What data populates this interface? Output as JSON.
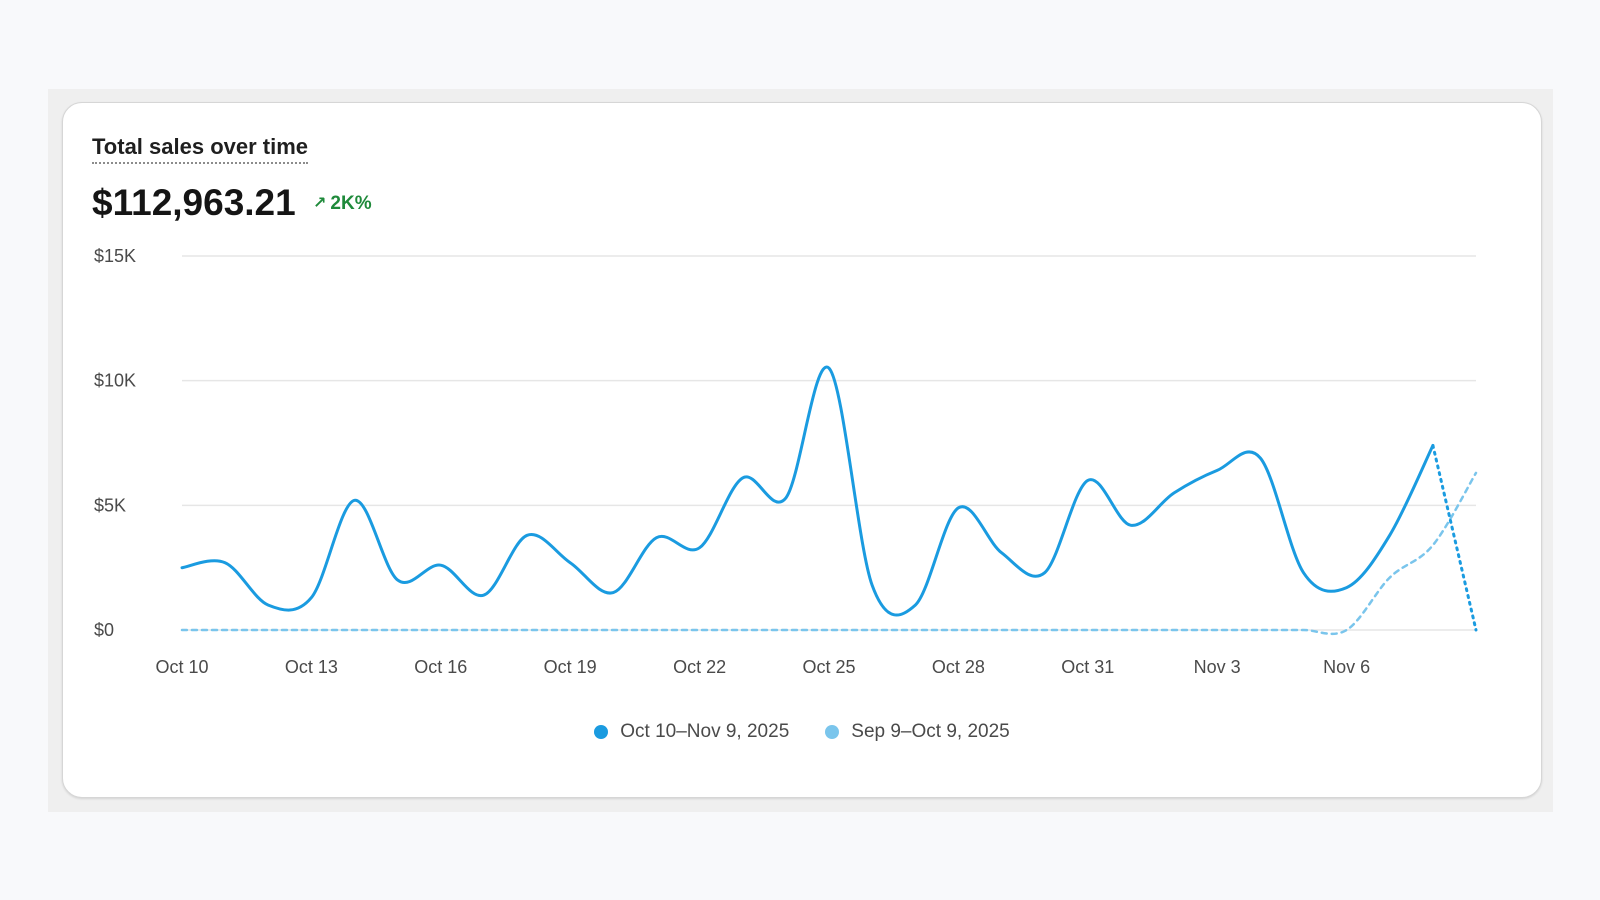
{
  "card": {
    "title": "Total sales over time",
    "total": "$112,963.21",
    "change": "2K%",
    "change_icon": "arrow-up-right-icon",
    "change_color": "#1f8a3b"
  },
  "chart_data": {
    "type": "line",
    "title": "Total sales over time",
    "y_ticks": [
      "$0",
      "$5K",
      "$10K",
      "$15K"
    ],
    "y_tick_values": [
      0,
      5000,
      10000,
      15000
    ],
    "ylim": [
      0,
      15000
    ],
    "x_tick_labels": [
      "Oct 10",
      "Oct 13",
      "Oct 16",
      "Oct 19",
      "Oct 22",
      "Oct 25",
      "Oct 28",
      "Oct 31",
      "Nov 3",
      "Nov 6"
    ],
    "x_tick_indices": [
      0,
      3,
      6,
      9,
      12,
      15,
      18,
      21,
      24,
      27
    ],
    "grid": true,
    "legend_position": "bottom-center",
    "series": [
      {
        "name": "Oct 10–Nov 9, 2025",
        "color": "#1a9be0",
        "style": "solid",
        "values": [
          2500,
          2700,
          1000,
          1300,
          5200,
          2000,
          2600,
          1400,
          3800,
          2700,
          1500,
          3700,
          3300,
          6100,
          5300,
          10500,
          1800,
          1000,
          4900,
          3100,
          2300,
          6000,
          4200,
          5500,
          6400,
          6900,
          2300,
          1700,
          3800,
          7400,
          0
        ],
        "dotted_from_index": 29
      },
      {
        "name": "Sep 9–Oct 9, 2025",
        "color": "#7ac5ec",
        "style": "dashed",
        "values": [
          0,
          0,
          0,
          0,
          0,
          0,
          0,
          0,
          0,
          0,
          0,
          0,
          0,
          0,
          0,
          0,
          0,
          0,
          0,
          0,
          0,
          0,
          0,
          0,
          0,
          0,
          0,
          0,
          2100,
          3400,
          6300
        ]
      }
    ]
  }
}
